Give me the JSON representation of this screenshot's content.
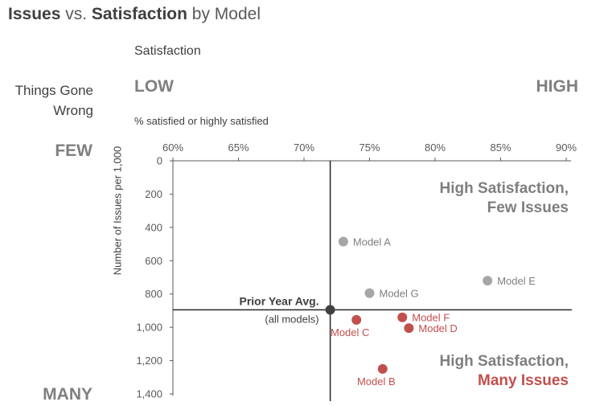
{
  "header": {
    "title_a": "Issues",
    "title_b": " vs. ",
    "title_c": "Satisfaction",
    "title_d": " by Model",
    "satisfaction_label": "Satisfaction",
    "things_gone_wrong": "Things Gone Wrong",
    "low": "LOW",
    "high": "HIGH",
    "few": "FEW",
    "many": "MANY",
    "x_axis_label": "% satisfied or highly satisfied",
    "y_axis_label": "Number of Issues per 1,000"
  },
  "chart_data": {
    "type": "scatter",
    "title": "Issues vs. Satisfaction by Model",
    "xlabel": "% satisfied or highly satisfied",
    "ylabel": "Number of Issues per 1,000",
    "xlim": [
      60,
      90
    ],
    "ylim": [
      0,
      1400
    ],
    "y_inverted": true,
    "x_ticks": [
      "60%",
      "65%",
      "70%",
      "75%",
      "80%",
      "85%",
      "90%"
    ],
    "x_tick_values": [
      60,
      65,
      70,
      75,
      80,
      85,
      90
    ],
    "y_ticks": [
      "0",
      "200",
      "400",
      "600",
      "800",
      "1,000",
      "1,200",
      "1,400"
    ],
    "y_tick_values": [
      0,
      200,
      400,
      600,
      800,
      1000,
      1200,
      1400
    ],
    "grid": false,
    "points": [
      {
        "name": "Model A",
        "x": 73,
        "y": 485,
        "color": "#a6a6a6",
        "label_color": "#7f7f7f",
        "label_side": "right"
      },
      {
        "name": "Model E",
        "x": 84,
        "y": 720,
        "color": "#a6a6a6",
        "label_color": "#7f7f7f",
        "label_side": "right"
      },
      {
        "name": "Model G",
        "x": 75,
        "y": 795,
        "color": "#a6a6a6",
        "label_color": "#7f7f7f",
        "label_side": "right"
      },
      {
        "name": "Model F",
        "x": 77.5,
        "y": 940,
        "color": "#c0504d",
        "label_color": "#c0504d",
        "label_side": "right"
      },
      {
        "name": "Model D",
        "x": 78,
        "y": 1005,
        "color": "#c0504d",
        "label_color": "#c0504d",
        "label_side": "right"
      },
      {
        "name": "Model C",
        "x": 74,
        "y": 955,
        "color": "#c0504d",
        "label_color": "#c0504d",
        "label_side": "below"
      },
      {
        "name": "Model B",
        "x": 76,
        "y": 1250,
        "color": "#c0504d",
        "label_color": "#c0504d",
        "label_side": "below"
      }
    ],
    "reference_point": {
      "name": "Prior Year Avg.",
      "sub": "(all models)",
      "x": 72,
      "y": 895,
      "color": "#404040"
    },
    "annotations": [
      {
        "line1": "High Satisfaction,",
        "line2": "Few Issues",
        "color1": "#7f7f7f",
        "color2": "#7f7f7f",
        "position": "top-right"
      },
      {
        "line1": "High Satisfaction,",
        "line2": "Many Issues",
        "color1": "#7f7f7f",
        "color2": "#c0504d",
        "position": "bottom-right"
      }
    ],
    "colors": {
      "axis": "#595959",
      "reference_line": "#262626",
      "gray": "#a6a6a6",
      "red": "#c0504d"
    }
  }
}
